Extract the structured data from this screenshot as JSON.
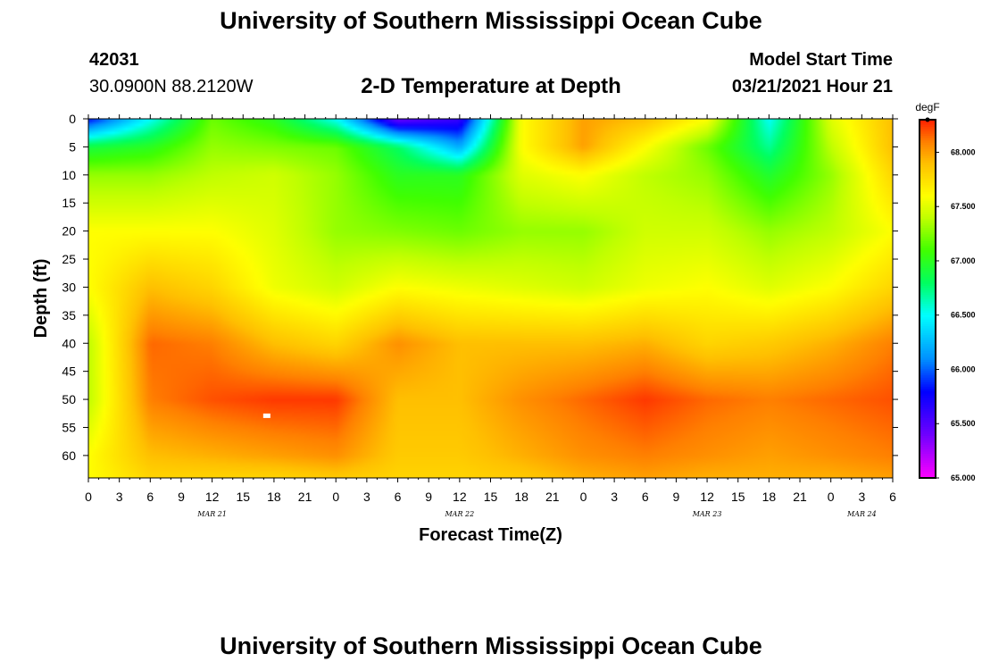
{
  "header": {
    "title": "University of Southern Mississippi Ocean Cube",
    "station_id": "42031",
    "coordinates": "30.0900N 88.2120W",
    "plot_title": "2-D Temperature at Depth",
    "model_start_label": "Model Start Time",
    "model_start_value": "03/21/2021 Hour 21"
  },
  "footer": {
    "title": "University of Southern Mississippi Ocean Cube"
  },
  "colors": {
    "background": "#ffffff",
    "axis": "#000000",
    "marker": "#ffffff"
  },
  "chart_data": {
    "type": "heatmap",
    "title": "2-D Temperature at Depth",
    "xlabel": "Forecast Time(Z)",
    "ylabel": "Depth (ft)",
    "x_unit": "hours from 00Z Mar 21",
    "xlim": [
      0,
      78
    ],
    "ylim": [
      0,
      64
    ],
    "x_tick_values": [
      0,
      3,
      6,
      9,
      12,
      15,
      18,
      21,
      24,
      27,
      30,
      33,
      36,
      39,
      42,
      45,
      48,
      51,
      54,
      57,
      60,
      63,
      66,
      69,
      72,
      75,
      78
    ],
    "x_tick_labels": [
      "0",
      "3",
      "6",
      "9",
      "12",
      "15",
      "18",
      "21",
      "0",
      "3",
      "6",
      "9",
      "12",
      "15",
      "18",
      "21",
      "0",
      "3",
      "6",
      "9",
      "12",
      "15",
      "18",
      "21",
      "0",
      "3",
      "6"
    ],
    "day_labels": [
      {
        "text": "MAR 21",
        "x": 12
      },
      {
        "text": "MAR 22",
        "x": 36
      },
      {
        "text": "MAR 23",
        "x": 60
      },
      {
        "text": "MAR 24",
        "x": 75
      }
    ],
    "y_tick_values": [
      0,
      5,
      10,
      15,
      20,
      25,
      30,
      35,
      40,
      45,
      50,
      55,
      60
    ],
    "y_tick_labels": [
      "0",
      "5",
      "10",
      "15",
      "20",
      "25",
      "30",
      "35",
      "40",
      "45",
      "50",
      "55",
      "60"
    ],
    "colorbar": {
      "unit": "degF",
      "min": 65.0,
      "max": 68.3,
      "tick_values": [
        65.0,
        65.5,
        66.0,
        66.5,
        67.0,
        67.5,
        68.0
      ],
      "tick_labels": [
        "65.000",
        "65.500",
        "66.000",
        "66.500",
        "67.000",
        "67.500",
        "68.000"
      ],
      "color_stops": [
        {
          "value": 65.0,
          "color": "#ff00ff"
        },
        {
          "value": 65.4,
          "color": "#7000ff"
        },
        {
          "value": 65.8,
          "color": "#0000ff"
        },
        {
          "value": 66.1,
          "color": "#0090ff"
        },
        {
          "value": 66.5,
          "color": "#00ffff"
        },
        {
          "value": 66.8,
          "color": "#00ff60"
        },
        {
          "value": 67.1,
          "color": "#40ff00"
        },
        {
          "value": 67.4,
          "color": "#c0ff00"
        },
        {
          "value": 67.6,
          "color": "#ffff00"
        },
        {
          "value": 67.9,
          "color": "#ffc000"
        },
        {
          "value": 68.1,
          "color": "#ff8000"
        },
        {
          "value": 68.3,
          "color": "#ff2000"
        }
      ]
    },
    "grid_times": [
      0,
      6,
      12,
      18,
      24,
      30,
      36,
      42,
      48,
      54,
      60,
      66,
      72,
      78
    ],
    "grid_depths": [
      0,
      5,
      10,
      20,
      30,
      40,
      50,
      60,
      64
    ],
    "temperature_degF": [
      [
        65.8,
        66.9,
        67.3,
        67.6,
        67.6,
        67.4,
        67.4,
        67.6,
        67.6
      ],
      [
        66.5,
        67.0,
        67.3,
        67.6,
        67.9,
        68.15,
        68.1,
        67.9,
        67.8
      ],
      [
        67.2,
        67.3,
        67.4,
        67.6,
        67.8,
        68.1,
        68.2,
        67.95,
        67.8
      ],
      [
        67.0,
        67.25,
        67.45,
        67.5,
        67.55,
        67.9,
        68.25,
        68.0,
        67.8
      ],
      [
        66.5,
        67.2,
        67.3,
        67.3,
        67.45,
        67.8,
        68.25,
        68.05,
        67.85
      ],
      [
        65.4,
        66.8,
        67.0,
        67.25,
        67.6,
        68.05,
        67.9,
        67.85,
        67.8
      ],
      [
        65.6,
        66.2,
        67.0,
        67.2,
        67.55,
        67.9,
        67.9,
        67.85,
        67.8
      ],
      [
        67.6,
        67.6,
        67.5,
        67.3,
        67.5,
        67.9,
        68.05,
        67.95,
        67.85
      ],
      [
        68.0,
        68.0,
        67.6,
        67.3,
        67.45,
        67.9,
        68.15,
        68.05,
        67.95
      ],
      [
        67.9,
        67.6,
        67.4,
        67.45,
        67.55,
        67.95,
        68.25,
        68.1,
        68.0
      ],
      [
        67.6,
        67.2,
        67.3,
        67.45,
        67.6,
        67.8,
        68.15,
        68.05,
        67.95
      ],
      [
        66.5,
        66.7,
        66.95,
        67.3,
        67.5,
        67.85,
        68.1,
        68.0,
        67.95
      ],
      [
        67.5,
        67.4,
        67.3,
        67.4,
        67.6,
        67.95,
        68.15,
        68.05,
        67.95
      ],
      [
        67.9,
        67.9,
        67.8,
        67.6,
        67.8,
        68.1,
        68.2,
        68.1,
        68.0
      ]
    ],
    "marker": {
      "x": 17.3,
      "depth": 53.0
    }
  }
}
